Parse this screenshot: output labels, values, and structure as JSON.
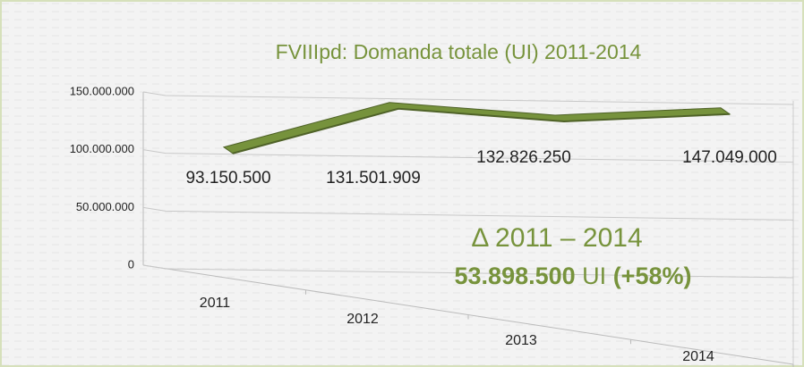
{
  "chart_data": {
    "type": "line",
    "title": "FVIIIpd: Domanda totale (UI) 2011-2014",
    "categories": [
      "2011",
      "2012",
      "2013",
      "2014"
    ],
    "values": [
      93150500,
      131501909,
      132826250,
      147049000
    ],
    "value_labels": [
      "93.150.500",
      "131.501.909",
      "132.826.250",
      "147.049.000"
    ],
    "color": "#6b8e23",
    "ylim": [
      0,
      150000000
    ],
    "yticks": [
      0,
      {
        "value": 50000000,
        "label": "50.000.000"
      },
      {
        "value": 100000000,
        "label": "100.000.000"
      },
      {
        "value": 150000000,
        "label": "150.000.000"
      }
    ],
    "grid": true,
    "annotation": {
      "line1": "Δ 2011 – 2014",
      "delta": "53.898.500",
      "unit": "UI",
      "percent": "(+58%)"
    }
  }
}
